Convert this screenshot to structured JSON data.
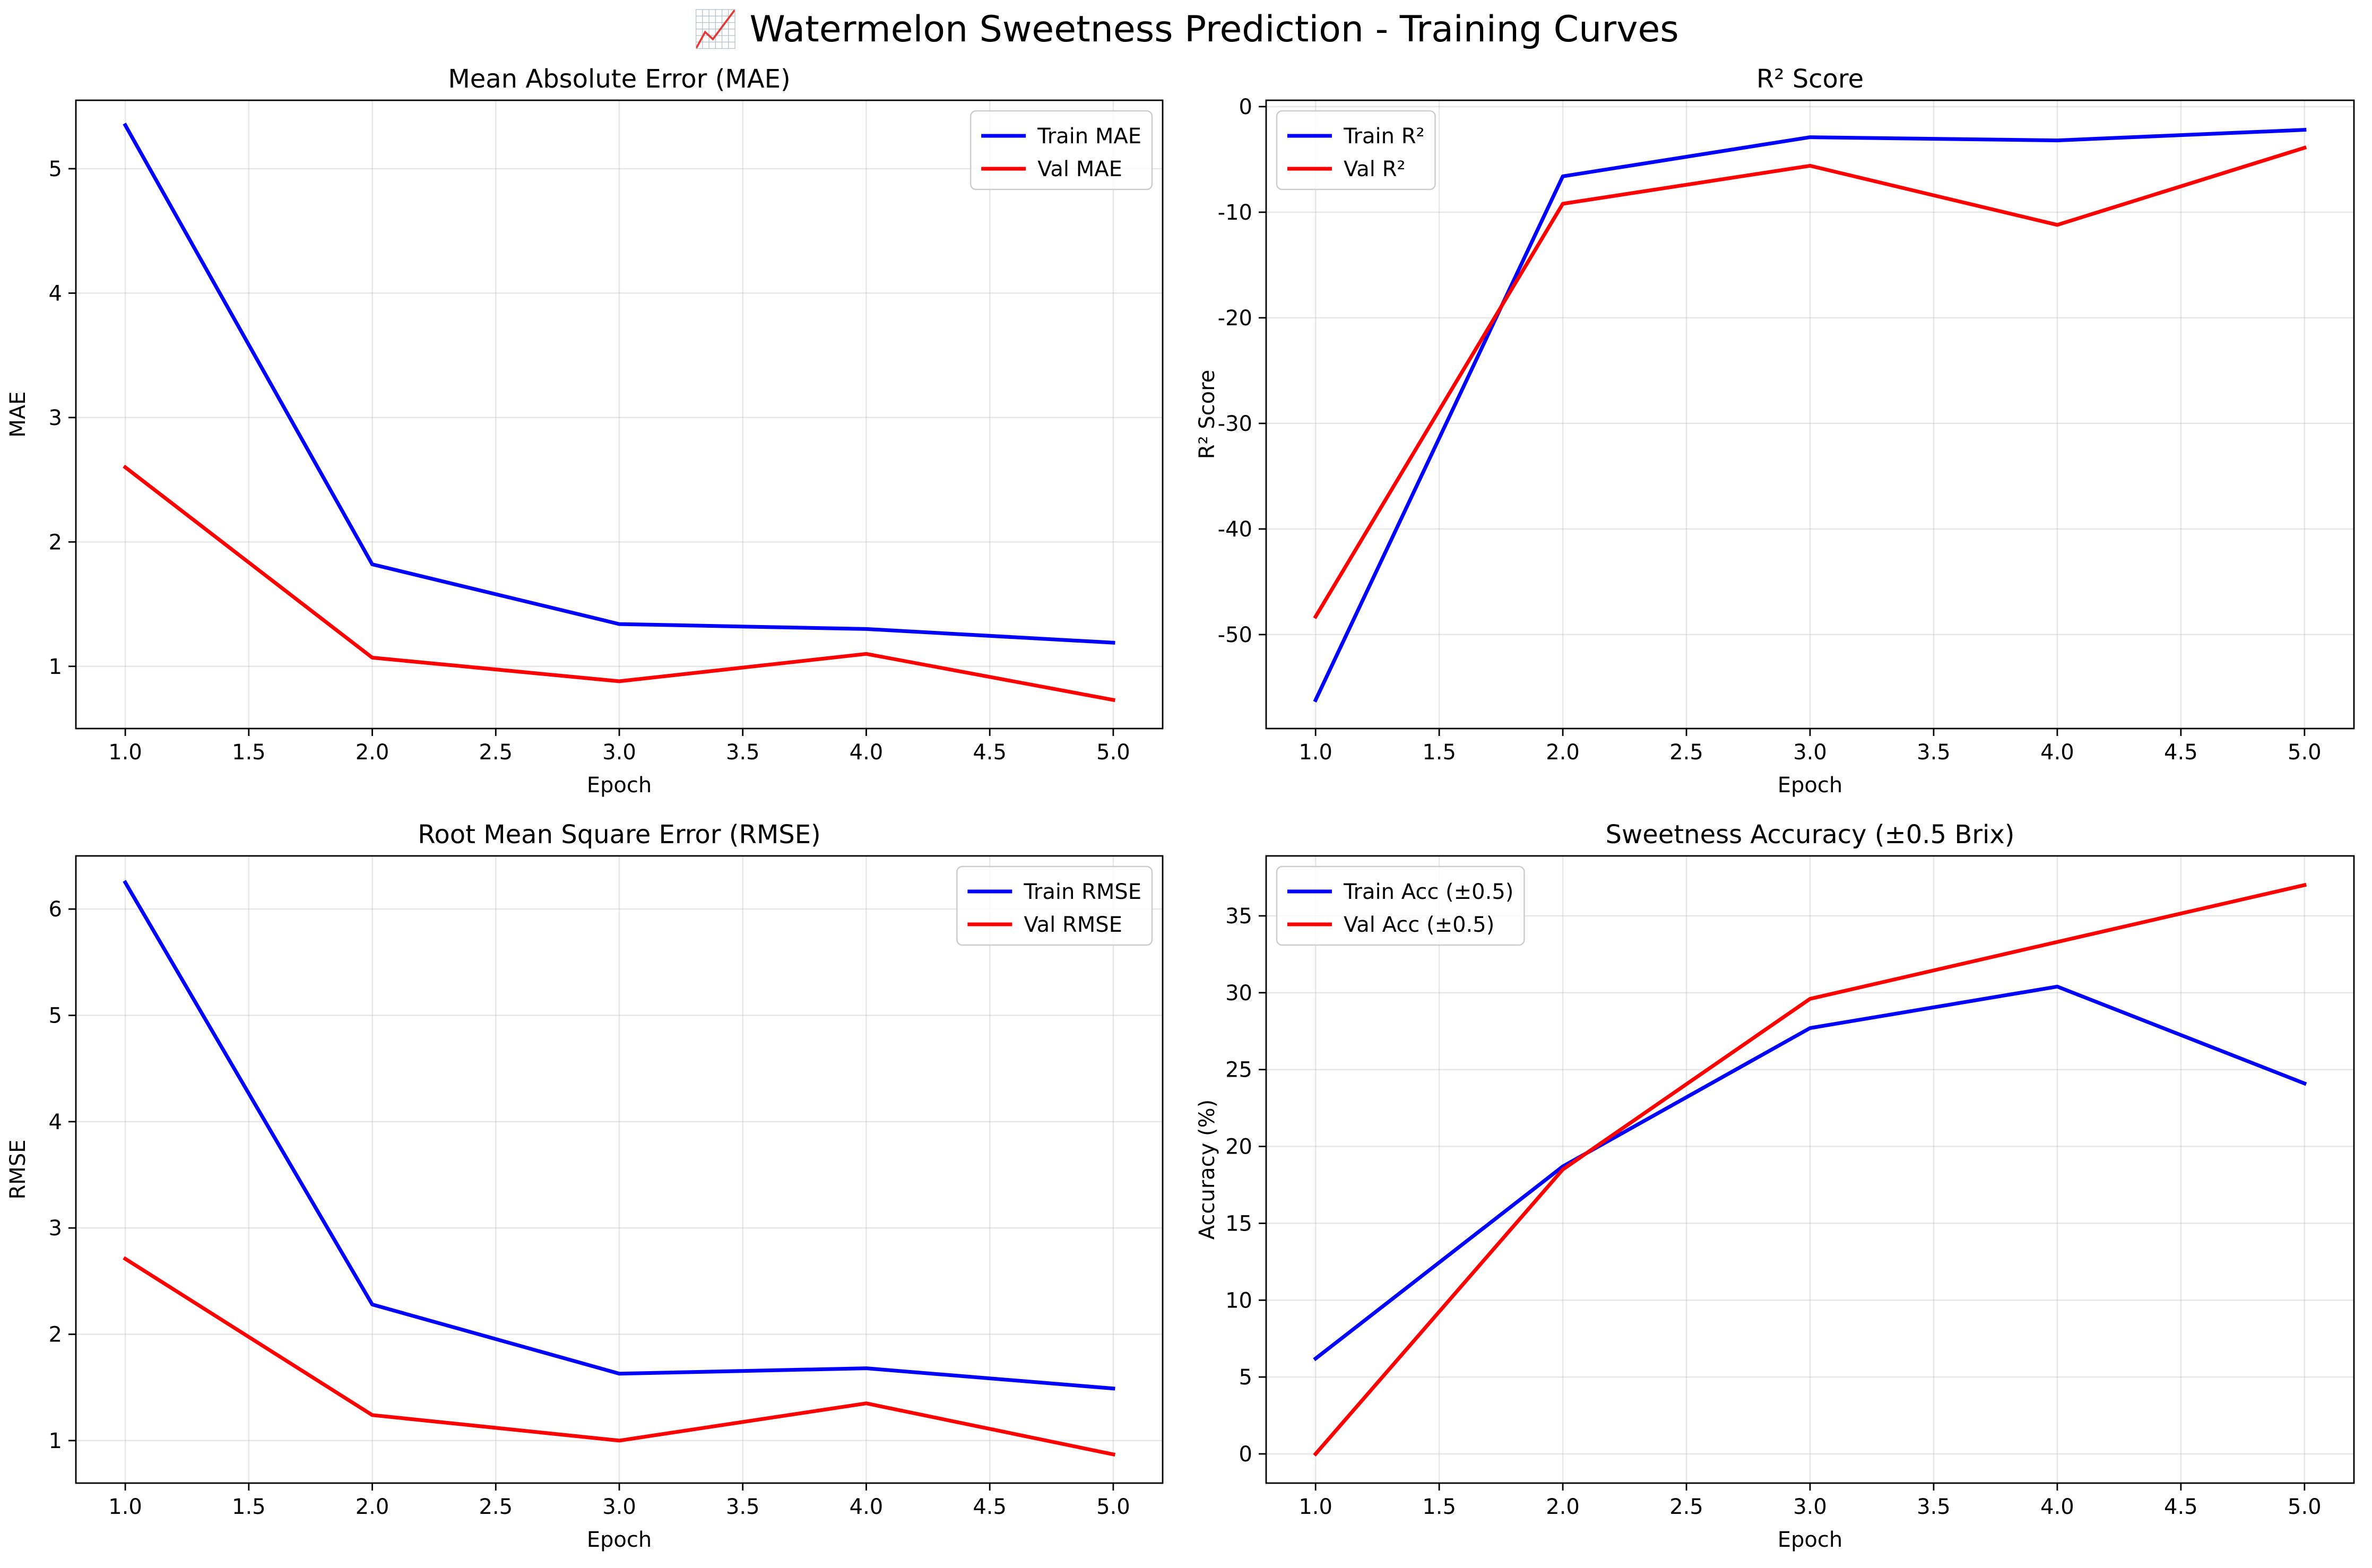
{
  "figure": {
    "title": "📈 Watermelon Sweetness Prediction - Training Curves"
  },
  "chart_data": [
    {
      "type": "line",
      "title": "Mean Absolute Error (MAE)",
      "xlabel": "Epoch",
      "ylabel": "MAE",
      "x": [
        1,
        2,
        3,
        4,
        5
      ],
      "xlim": [
        0.8,
        5.2
      ],
      "ylim": [
        0.5,
        5.55
      ],
      "xticks": [
        1.0,
        1.5,
        2.0,
        2.5,
        3.0,
        3.5,
        4.0,
        4.5,
        5.0
      ],
      "yticks": [
        1,
        2,
        3,
        4,
        5
      ],
      "legend": "top-right",
      "grid": true,
      "series": [
        {
          "name": "Train MAE",
          "color": "#0000ff",
          "values": [
            5.35,
            1.82,
            1.34,
            1.3,
            1.19
          ]
        },
        {
          "name": "Val MAE",
          "color": "#ff0000",
          "values": [
            2.6,
            1.07,
            0.88,
            1.1,
            0.73
          ]
        }
      ]
    },
    {
      "type": "line",
      "title": "R² Score",
      "xlabel": "Epoch",
      "ylabel": "R² Score",
      "x": [
        1,
        2,
        3,
        4,
        5
      ],
      "xlim": [
        0.8,
        5.2
      ],
      "ylim": [
        -58.9,
        0.6
      ],
      "xticks": [
        1.0,
        1.5,
        2.0,
        2.5,
        3.0,
        3.5,
        4.0,
        4.5,
        5.0
      ],
      "yticks": [
        -50,
        -40,
        -30,
        -20,
        -10,
        0
      ],
      "legend": "top-left",
      "grid": true,
      "series": [
        {
          "name": "Train R²",
          "color": "#0000ff",
          "values": [
            -56.2,
            -6.6,
            -2.9,
            -3.2,
            -2.2
          ]
        },
        {
          "name": "Val R²",
          "color": "#ff0000",
          "values": [
            -48.3,
            -9.2,
            -5.6,
            -11.2,
            -3.9
          ]
        }
      ]
    },
    {
      "type": "line",
      "title": "Root Mean Square Error (RMSE)",
      "xlabel": "Epoch",
      "ylabel": "RMSE",
      "x": [
        1,
        2,
        3,
        4,
        5
      ],
      "xlim": [
        0.8,
        5.2
      ],
      "ylim": [
        0.6,
        6.5
      ],
      "xticks": [
        1.0,
        1.5,
        2.0,
        2.5,
        3.0,
        3.5,
        4.0,
        4.5,
        5.0
      ],
      "yticks": [
        1,
        2,
        3,
        4,
        5,
        6
      ],
      "legend": "top-right",
      "grid": true,
      "series": [
        {
          "name": "Train RMSE",
          "color": "#0000ff",
          "values": [
            6.25,
            2.28,
            1.63,
            1.68,
            1.49
          ]
        },
        {
          "name": "Val RMSE",
          "color": "#ff0000",
          "values": [
            2.71,
            1.24,
            1.0,
            1.35,
            0.87
          ]
        }
      ]
    },
    {
      "type": "line",
      "title": "Sweetness Accuracy (±0.5 Brix)",
      "xlabel": "Epoch",
      "ylabel": "Accuracy (%)",
      "x": [
        1,
        2,
        3,
        4,
        5
      ],
      "xlim": [
        0.8,
        5.2
      ],
      "ylim": [
        -1.9,
        38.9
      ],
      "xticks": [
        1.0,
        1.5,
        2.0,
        2.5,
        3.0,
        3.5,
        4.0,
        4.5,
        5.0
      ],
      "yticks": [
        0,
        5,
        10,
        15,
        20,
        25,
        30,
        35
      ],
      "legend": "top-left",
      "grid": true,
      "series": [
        {
          "name": "Train Acc (±0.5)",
          "color": "#0000ff",
          "values": [
            6.2,
            18.7,
            27.7,
            30.4,
            24.1
          ]
        },
        {
          "name": "Val Acc (±0.5)",
          "color": "#ff0000",
          "values": [
            0.0,
            18.5,
            29.6,
            33.3,
            37.0
          ]
        }
      ]
    }
  ]
}
